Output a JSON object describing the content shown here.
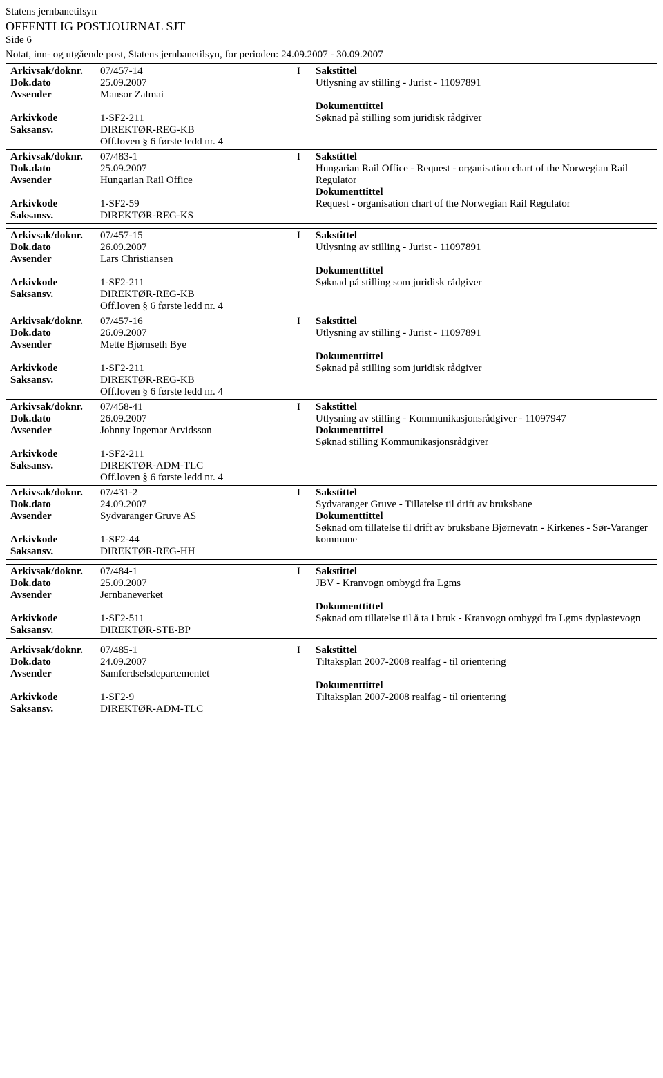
{
  "header": {
    "org": "Statens jernbanetilsyn",
    "title": "OFFENTLIG POSTJOURNAL SJT",
    "page": "Side 6",
    "subheader": "Notat, inn- og utgående post, Statens jernbanetilsyn, for perioden: 24.09.2007 - 30.09.2007"
  },
  "labels": {
    "arkivsak": "Arkivsak/doknr.",
    "dokdato": "Dok.dato",
    "avsender": "Avsender",
    "arkivkode": "Arkivkode",
    "saksansv": "Saksansv.",
    "sakstittel": "Sakstittel",
    "dokumenttittel": "Dokumenttittel"
  },
  "records": [
    {
      "firstInGroup": true,
      "first": true,
      "arkivsak": "07/457-14",
      "io": "I",
      "dokdato": "25.09.2007",
      "avsender": "Mansor Zalmai",
      "arkivkode": "1-SF2-211",
      "saksansv": "DIREKTØR-REG-KB",
      "offloven": "Off.loven § 6 første ledd nr. 4",
      "sakstittel": "Utlysning av stilling - Jurist - 11097891",
      "dokumenttittel": "Søknad på stilling som juridisk rådgiver"
    },
    {
      "firstInGroup": false,
      "arkivsak": "07/483-1",
      "io": "I",
      "dokdato": "25.09.2007",
      "avsender": "Hungarian Rail Office",
      "arkivkode": "1-SF2-59",
      "saksansv": "DIREKTØR-REG-KS",
      "offloven": "",
      "sakstittel": "Hungarian Rail Office - Request - organisation chart of the Norwegian Rail Regulator",
      "dokumenttittel": "Request - organisation chart of the Norwegian Rail Regulator"
    },
    {
      "firstInGroup": true,
      "arkivsak": "07/457-15",
      "io": "I",
      "dokdato": "26.09.2007",
      "avsender": "Lars Christiansen",
      "arkivkode": "1-SF2-211",
      "saksansv": "DIREKTØR-REG-KB",
      "offloven": "Off.loven § 6 første ledd nr. 4",
      "sakstittel": "Utlysning av stilling - Jurist - 11097891",
      "dokumenttittel": "Søknad på stilling som juridisk rådgiver"
    },
    {
      "firstInGroup": false,
      "arkivsak": "07/457-16",
      "io": "I",
      "dokdato": "26.09.2007",
      "avsender": "Mette Bjørnseth Bye",
      "arkivkode": "1-SF2-211",
      "saksansv": "DIREKTØR-REG-KB",
      "offloven": "Off.loven § 6 første ledd nr. 4",
      "sakstittel": "Utlysning av stilling - Jurist - 11097891",
      "dokumenttittel": "Søknad på stilling som juridisk rådgiver"
    },
    {
      "firstInGroup": false,
      "arkivsak": "07/458-41",
      "io": "I",
      "dokdato": "26.09.2007",
      "avsender": "Johnny Ingemar Arvidsson",
      "arkivkode": "1-SF2-211",
      "saksansv": "DIREKTØR-ADM-TLC",
      "offloven": "Off.loven § 6 første ledd nr. 4",
      "sakstittel": "Utlysning av stilling - Kommunikasjonsrådgiver - 11097947",
      "dokumenttittel": "Søknad stilling Kommunikasjonsrådgiver"
    },
    {
      "firstInGroup": false,
      "arkivsak": "07/431-2",
      "io": "I",
      "dokdato": "24.09.2007",
      "avsender": "Sydvaranger Gruve AS",
      "arkivkode": "1-SF2-44",
      "saksansv": "DIREKTØR-REG-HH",
      "offloven": "",
      "sakstittel": "Sydvaranger Gruve - Tillatelse til drift av bruksbane",
      "dokumenttittel": "Søknad om tillatelse til drift av bruksbane Bjørnevatn - Kirkenes - Sør-Varanger kommune"
    },
    {
      "firstInGroup": true,
      "arkivsak": "07/484-1",
      "io": "I",
      "dokdato": "25.09.2007",
      "avsender": "Jernbaneverket",
      "arkivkode": "1-SF2-511",
      "saksansv": "DIREKTØR-STE-BP",
      "offloven": "",
      "sakstittel": "JBV - Kranvogn ombygd fra Lgms",
      "dokumenttittel": "Søknad om tillatelse til å ta i bruk - Kranvogn ombygd fra Lgms dyplastevogn"
    },
    {
      "firstInGroup": true,
      "arkivsak": "07/485-1",
      "io": "I",
      "dokdato": "24.09.2007",
      "avsender": "Samferdselsdepartementet",
      "arkivkode": "1-SF2-9",
      "saksansv": "DIREKTØR-ADM-TLC",
      "offloven": "",
      "sakstittel": "Tiltaksplan 2007-2008 realfag - til orientering",
      "dokumenttittel": "Tiltaksplan 2007-2008 realfag - til orientering"
    }
  ]
}
